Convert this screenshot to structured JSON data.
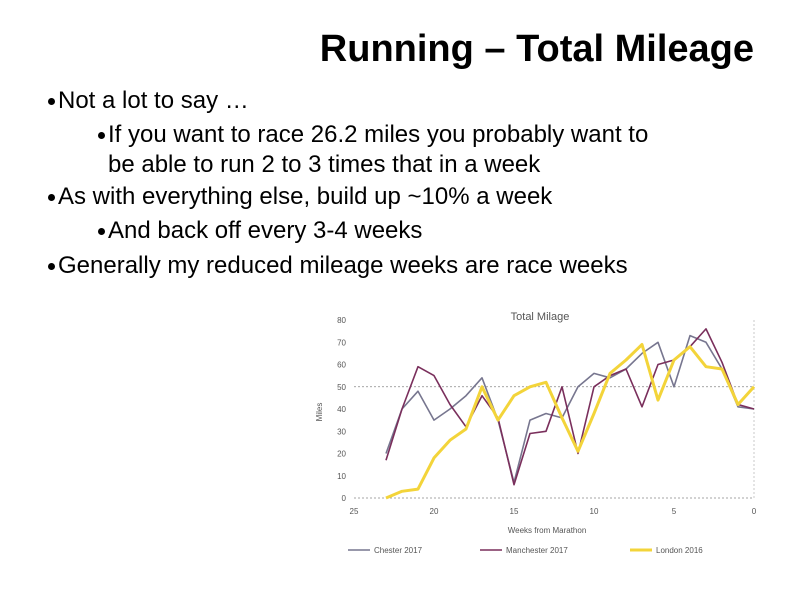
{
  "slide": {
    "title": "Running – Total Mileage",
    "bullets": [
      {
        "level": 1,
        "text": "Not a lot to say …"
      },
      {
        "level": 2,
        "text": "If you want to race 26.2 miles you probably want to"
      },
      {
        "level": 2,
        "text": "be able to run 2 to 3 times that in a week",
        "continuation": true
      },
      {
        "level": 1,
        "text": "As with everything else, build up ~10% a week"
      },
      {
        "level": 2,
        "text": "And back off every 3-4 weeks"
      },
      {
        "level": 1,
        "text": "Generally my reduced mileage weeks are race weeks"
      }
    ]
  },
  "chart_data": {
    "type": "line",
    "title": "Total Milage",
    "xlabel": "Weeks from Marathon",
    "ylabel": "Miles",
    "xlim": [
      25,
      0
    ],
    "ylim": [
      0,
      80
    ],
    "x_ticks": [
      "25",
      "20",
      "15",
      "10",
      "5",
      "0"
    ],
    "y_ticks": [
      "0",
      "10",
      "20",
      "30",
      "40",
      "50",
      "60",
      "70",
      "80"
    ],
    "legend_position": "bottom",
    "series": [
      {
        "name": "Chester 2017",
        "color": "#77768f",
        "x": [
          23,
          22,
          21,
          20,
          19,
          18,
          17,
          16,
          15,
          14,
          13,
          12,
          11,
          10,
          9,
          8,
          7,
          6,
          5,
          4,
          3,
          2,
          1,
          0
        ],
        "values": [
          20,
          40,
          48,
          35,
          40,
          46,
          54,
          35,
          7,
          35,
          38,
          36,
          50,
          56,
          54,
          58,
          65,
          70,
          50,
          73,
          70,
          58,
          41,
          40
        ]
      },
      {
        "name": "Manchester 2017",
        "color": "#7a2f5c",
        "x": [
          23,
          22,
          21,
          20,
          19,
          18,
          17,
          16,
          15,
          14,
          13,
          12,
          11,
          10,
          9,
          8,
          7,
          6,
          5,
          4,
          3,
          2,
          1,
          0
        ],
        "values": [
          17,
          40,
          59,
          55,
          42,
          32,
          46,
          36,
          6,
          29,
          30,
          50,
          20,
          50,
          55,
          58,
          41,
          60,
          62,
          68,
          76,
          61,
          42,
          40
        ]
      },
      {
        "name": "London 2016",
        "color": "#f3d43a",
        "x": [
          23,
          22,
          21,
          20,
          19,
          18,
          17,
          16,
          15,
          14,
          13,
          12,
          11,
          10,
          9,
          8,
          7,
          6,
          5,
          4,
          3,
          2,
          1,
          0
        ],
        "values": [
          0,
          3,
          4,
          18,
          26,
          31,
          50,
          35,
          46,
          50,
          52,
          36,
          21,
          38,
          56,
          62,
          69,
          44,
          62,
          68,
          59,
          58,
          42,
          50
        ]
      }
    ]
  }
}
